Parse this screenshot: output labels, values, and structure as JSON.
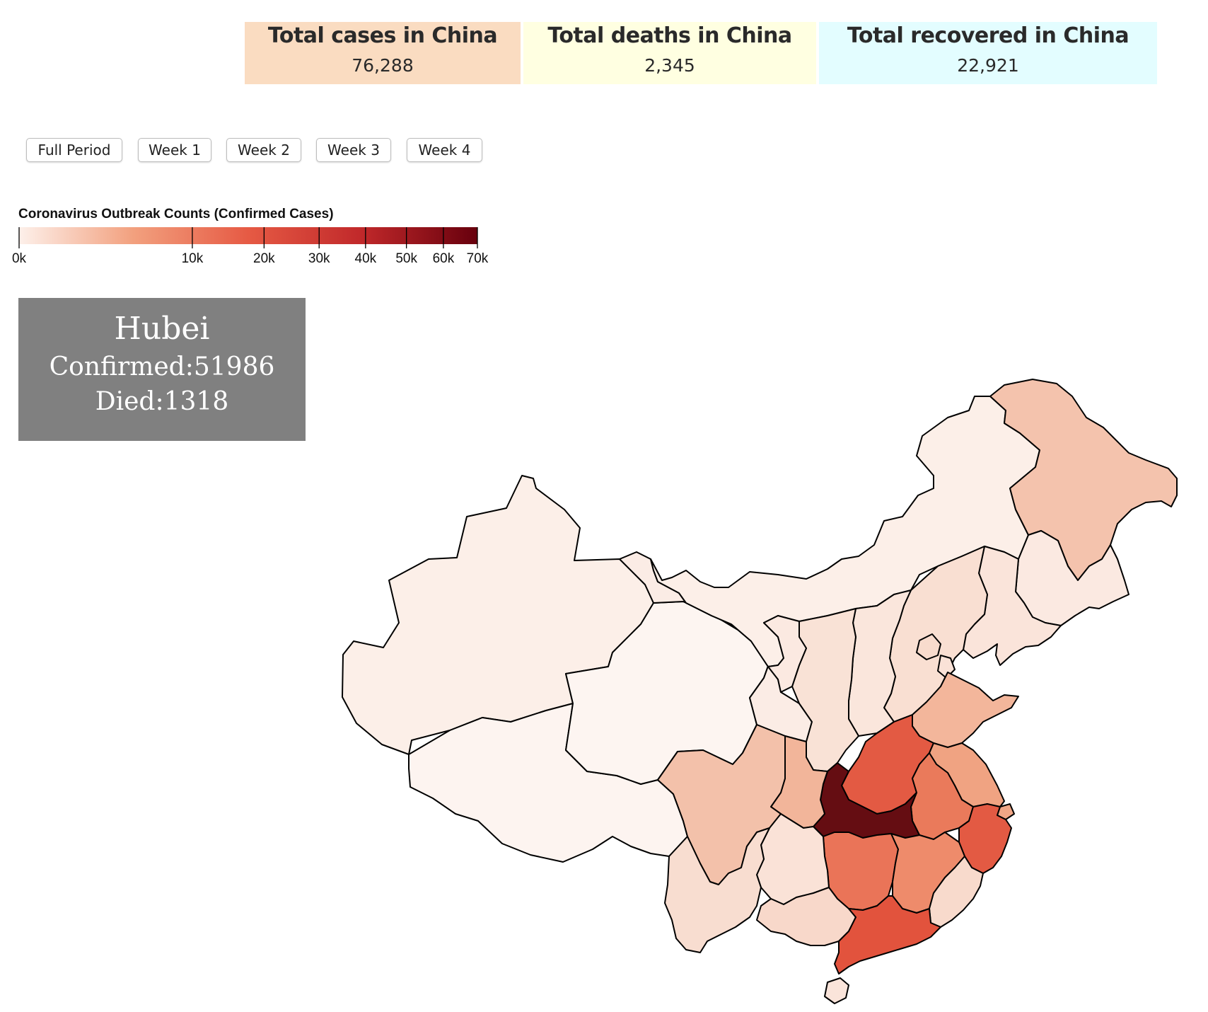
{
  "stats": [
    {
      "title": "Total cases in China",
      "value": "76,288",
      "color": "#fadcc1"
    },
    {
      "title": "Total deaths in China",
      "value": "2,345",
      "color": "#ffffe1"
    },
    {
      "title": "Total recovered in China",
      "value": "22,921",
      "color": "#e3fdff"
    }
  ],
  "period_buttons": [
    "Full Period",
    "Week 1",
    "Week 2",
    "Week 3",
    "Week 4"
  ],
  "legend": {
    "title": "Coronavirus Outbreak Counts (Confirmed Cases)",
    "ticks": [
      {
        "value": 0,
        "label": "0k"
      },
      {
        "value": 10000,
        "label": "10k"
      },
      {
        "value": 20000,
        "label": "20k"
      },
      {
        "value": 30000,
        "label": "30k"
      },
      {
        "value": 40000,
        "label": "40k"
      },
      {
        "value": 50000,
        "label": "50k"
      },
      {
        "value": 60000,
        "label": "60k"
      },
      {
        "value": 70000,
        "label": "70k"
      }
    ],
    "min": 0,
    "max": 70000,
    "scale": "sqrt",
    "colors": [
      "#fdf0ea",
      "#f2a07e",
      "#e65a44",
      "#c0282a",
      "#67000d"
    ]
  },
  "tooltip": {
    "name": "Hubei",
    "confirmed_label": "Confirmed:",
    "confirmed": "51986",
    "died_label": "Died:",
    "died": "1318"
  },
  "map": {
    "region": "China",
    "highlighted": "Hubei",
    "province_fills": {
      "Xinjiang": "#fcefe8",
      "Tibet": "#fdf4f0",
      "Qinghai": "#fdf5f1",
      "Gansu": "#fbece5",
      "Inner Mongolia": "#fcefe8",
      "Heilongjiang": "#f4c3ad",
      "Jilin": "#fbe9e1",
      "Liaoning": "#fae4da",
      "Hebei": "#f9dfd2",
      "Beijing": "#f8dbcd",
      "Tianjin": "#fae2d7",
      "Shanxi": "#fae6dc",
      "Shaanxi": "#f9e2d6",
      "Ningxia": "#fbe9e1",
      "Shandong": "#f3b69b",
      "Henan": "#e35a43",
      "Anhui": "#ea7a5b",
      "Jiangsu": "#f0a382",
      "Shanghai": "#f1a686",
      "Zhejiang": "#e35a43",
      "Hubei": "#650d12",
      "Chongqing": "#f2b59a",
      "Sichuan": "#f3c1aa",
      "Hunan": "#ea7458",
      "Jiangxi": "#ee8b6b",
      "Fujian": "#f8dacc",
      "Guizhou": "#fae2d7",
      "Yunnan": "#f8ddd0",
      "Guangxi": "#f8d8ca",
      "Guangdong": "#e2533d",
      "Hainan": "#fae4da"
    }
  }
}
